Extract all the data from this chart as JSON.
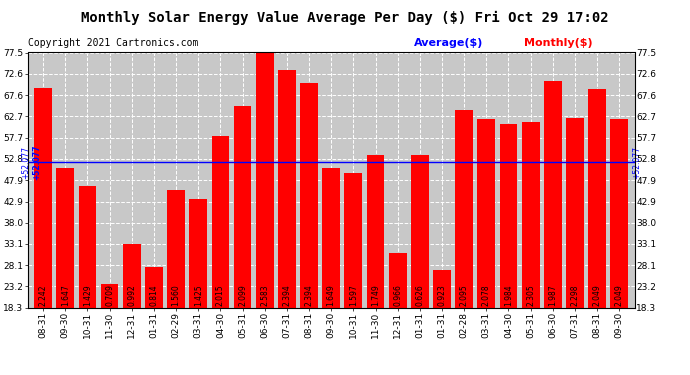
{
  "title": "Monthly Solar Energy Value Average Per Day ($) Fri Oct 29 17:02",
  "copyright": "Copyright 2021 Cartronics.com",
  "legend_avg": "Average($)",
  "legend_monthly": "Monthly($)",
  "average_line": 52.077,
  "average_label": "+52.077",
  "bar_color": "#ff0000",
  "avg_line_color": "#0000ff",
  "categories": [
    "08-31",
    "09-30",
    "10-31",
    "11-30",
    "12-31",
    "01-31",
    "02-29",
    "03-31",
    "04-30",
    "05-31",
    "06-30",
    "07-31",
    "08-31",
    "09-30",
    "10-31",
    "11-30",
    "12-31",
    "01-31",
    "01-31",
    "02-28",
    "03-31",
    "04-30",
    "05-31",
    "06-30",
    "07-31",
    "08-31",
    "09-30"
  ],
  "values": [
    69.242,
    50.647,
    46.429,
    23.709,
    32.992,
    27.814,
    45.56,
    43.425,
    58.015,
    65.099,
    78.583,
    73.394,
    70.394,
    50.699,
    49.597,
    53.749,
    30.966,
    53.626,
    26.923,
    64.095,
    62.078,
    60.994,
    61.305,
    70.987,
    62.298,
    69.049,
    62.049
  ],
  "bar_labels": [
    "2.242",
    "1.647",
    "1.429",
    "0.709",
    "0.992",
    "0.814",
    "1.560",
    "1.425",
    "2.015",
    "2.099",
    "2.583",
    "2.394",
    "2.394",
    "1.649",
    "1.597",
    "1.749",
    "0.966",
    "0.626",
    "0.923",
    "2.095",
    "2.078",
    "1.984",
    "2.305",
    "1.987",
    "2.298",
    "2.049",
    "2.049"
  ],
  "ylim": [
    18.3,
    77.5
  ],
  "yticks": [
    18.3,
    23.2,
    28.1,
    33.1,
    38.0,
    42.9,
    47.9,
    52.8,
    57.7,
    62.7,
    67.6,
    72.6,
    77.5
  ],
  "background_color": "#ffffff",
  "plot_bg_color": "#c8c8c8",
  "title_color": "#000000",
  "title_fontsize": 10,
  "copyright_fontsize": 7,
  "tick_fontsize": 6.5,
  "bar_label_fontsize": 5.5
}
